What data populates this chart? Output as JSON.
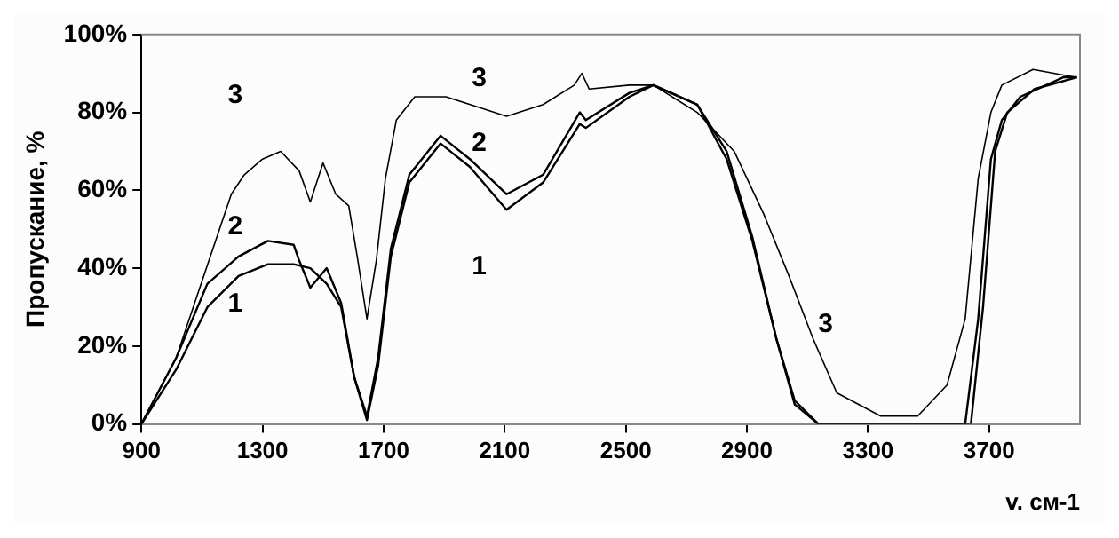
{
  "chart_data": {
    "type": "line",
    "xlabel": "v. см-1",
    "ylabel": "Пропускание, %",
    "xlim": [
      900,
      4000
    ],
    "xticks": [
      900,
      1300,
      1700,
      2100,
      2500,
      2900,
      3300,
      3700
    ],
    "ylim": [
      0,
      100
    ],
    "yticks": [
      {
        "value": 0,
        "label": "0%"
      },
      {
        "value": 20,
        "label": "20%"
      },
      {
        "value": 40,
        "label": "40%"
      },
      {
        "value": 60,
        "label": "60%"
      },
      {
        "value": 80,
        "label": "80%"
      },
      {
        "value": 100,
        "label": "100%"
      }
    ],
    "grid": false,
    "legend": false,
    "marker": "none",
    "series": [
      {
        "name": "1",
        "color": "#000000",
        "x": [
          900,
          1015,
          1118,
          1221,
          1318,
          1403,
          1458,
          1512,
          1560,
          1603,
          1645,
          1682,
          1724,
          1785,
          1888,
          1985,
          2106,
          2227,
          2348,
          2368,
          2512,
          2591,
          2736,
          2833,
          2918,
          2997,
          3058,
          3136,
          3640,
          3680,
          3720,
          3760,
          3850,
          3990
        ],
        "values": [
          0,
          14,
          30,
          38,
          41,
          41,
          40,
          36,
          30,
          12,
          1,
          15,
          43,
          62,
          72,
          66,
          55,
          62,
          77,
          76,
          84,
          87,
          82,
          70,
          48,
          22,
          5,
          0,
          0,
          30,
          70,
          80,
          86,
          89
        ]
      },
      {
        "name": "2",
        "color": "#000000",
        "x": [
          900,
          1015,
          1118,
          1221,
          1318,
          1403,
          1421,
          1458,
          1512,
          1560,
          1603,
          1645,
          1682,
          1724,
          1785,
          1888,
          1985,
          2106,
          2227,
          2348,
          2368,
          2512,
          2591,
          2736,
          2833,
          2918,
          2997,
          3058,
          3136,
          3621,
          3664,
          3706,
          3742,
          3803,
          3945,
          3990
        ],
        "values": [
          0,
          17,
          36,
          43,
          47,
          46,
          42,
          35,
          40,
          31,
          12,
          2,
          17,
          45,
          64,
          74,
          68,
          59,
          64,
          80,
          78,
          85,
          87,
          82,
          68,
          47,
          22,
          6,
          0,
          0,
          27,
          68,
          78,
          84,
          89,
          89
        ]
      },
      {
        "name": "3",
        "color": "#000000",
        "x": [
          900,
          1015,
          1197,
          1240,
          1300,
          1360,
          1421,
          1458,
          1500,
          1542,
          1585,
          1615,
          1645,
          1676,
          1706,
          1742,
          1803,
          1906,
          2027,
          2106,
          2227,
          2330,
          2355,
          2379,
          2512,
          2591,
          2736,
          2858,
          2955,
          3039,
          3118,
          3197,
          3342,
          3464,
          3561,
          3621,
          3664,
          3706,
          3742,
          3845,
          3985
        ],
        "values": [
          0,
          17,
          59,
          64,
          68,
          70,
          65,
          57,
          67,
          59,
          56,
          42,
          27,
          42,
          63,
          78,
          84,
          84,
          81,
          79,
          82,
          87,
          90,
          86,
          87,
          87,
          80,
          70,
          54,
          38,
          22,
          8,
          2,
          2,
          10,
          27,
          63,
          80,
          87,
          91,
          89
        ]
      }
    ]
  }
}
